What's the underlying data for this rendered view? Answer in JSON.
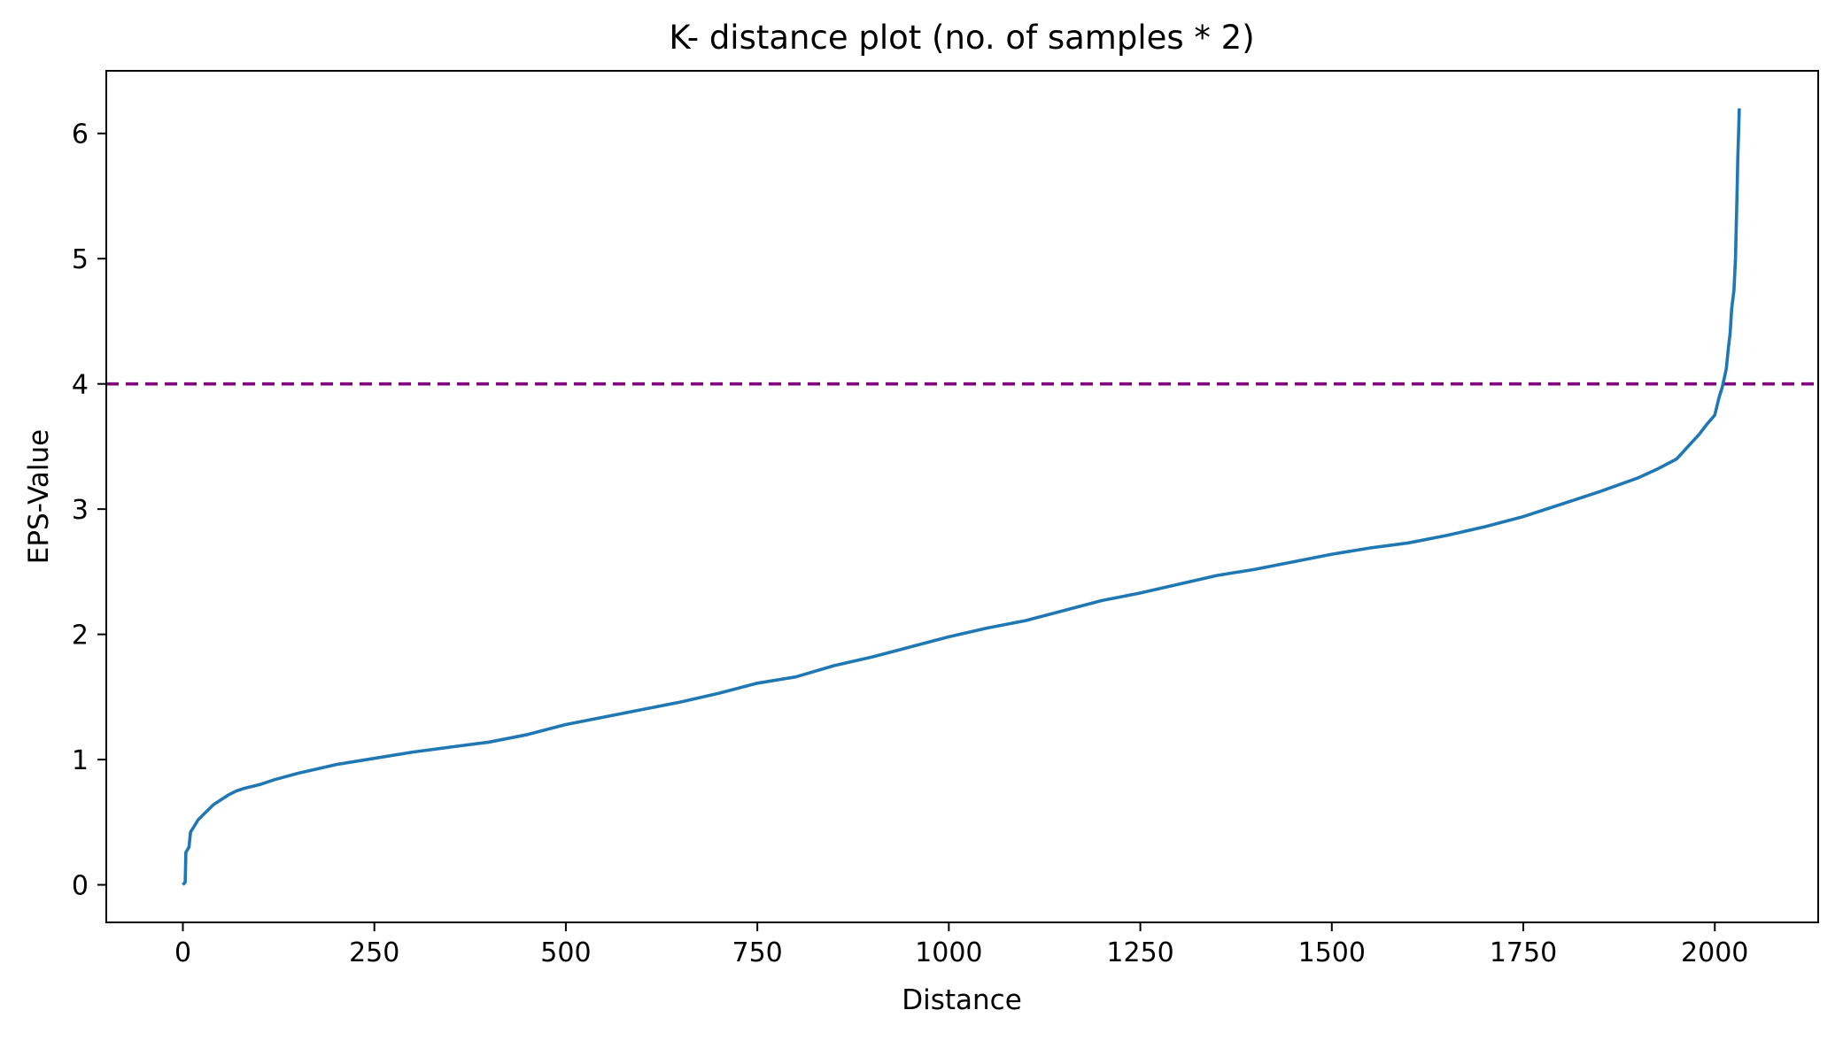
{
  "chart_data": {
    "type": "line",
    "title": "K- distance plot (no. of samples * 2)",
    "xlabel": "Distance",
    "ylabel": "EPS-Value",
    "xlim": [
      -100,
      2135
    ],
    "ylim": [
      -0.3,
      6.5
    ],
    "x_ticks": [
      0,
      250,
      500,
      750,
      1000,
      1250,
      1500,
      1750,
      2000
    ],
    "y_ticks": [
      0,
      1,
      2,
      3,
      4,
      5,
      6
    ],
    "grid": false,
    "legend": "none",
    "series": [
      {
        "color": "#1f77b4",
        "x": [
          0,
          3,
          4,
          8,
          10,
          15,
          20,
          30,
          40,
          50,
          60,
          70,
          80,
          100,
          120,
          150,
          200,
          250,
          300,
          350,
          400,
          450,
          500,
          550,
          600,
          650,
          700,
          750,
          800,
          850,
          900,
          950,
          1000,
          1050,
          1100,
          1150,
          1200,
          1250,
          1300,
          1350,
          1400,
          1450,
          1500,
          1550,
          1600,
          1650,
          1700,
          1750,
          1800,
          1850,
          1900,
          1925,
          1950,
          1965,
          1980,
          1990,
          2000,
          2005,
          2010,
          2015,
          2018,
          2020,
          2022,
          2025,
          2027,
          2029,
          2030,
          2031,
          2032
        ],
        "y": [
          0.0,
          0.02,
          0.26,
          0.3,
          0.42,
          0.47,
          0.52,
          0.58,
          0.64,
          0.68,
          0.72,
          0.75,
          0.77,
          0.8,
          0.84,
          0.89,
          0.96,
          1.01,
          1.06,
          1.1,
          1.14,
          1.2,
          1.28,
          1.34,
          1.4,
          1.46,
          1.53,
          1.61,
          1.66,
          1.75,
          1.82,
          1.9,
          1.98,
          2.05,
          2.11,
          2.19,
          2.27,
          2.33,
          2.4,
          2.47,
          2.52,
          2.58,
          2.64,
          2.69,
          2.73,
          2.79,
          2.86,
          2.94,
          3.04,
          3.14,
          3.25,
          3.32,
          3.4,
          3.5,
          3.6,
          3.68,
          3.75,
          3.88,
          3.98,
          4.12,
          4.3,
          4.4,
          4.6,
          4.75,
          5.0,
          5.5,
          5.8,
          6.0,
          6.2
        ]
      }
    ],
    "reference_line": {
      "orientation": "horizontal",
      "y": 4,
      "style": "dashed",
      "color": "#800080"
    }
  }
}
